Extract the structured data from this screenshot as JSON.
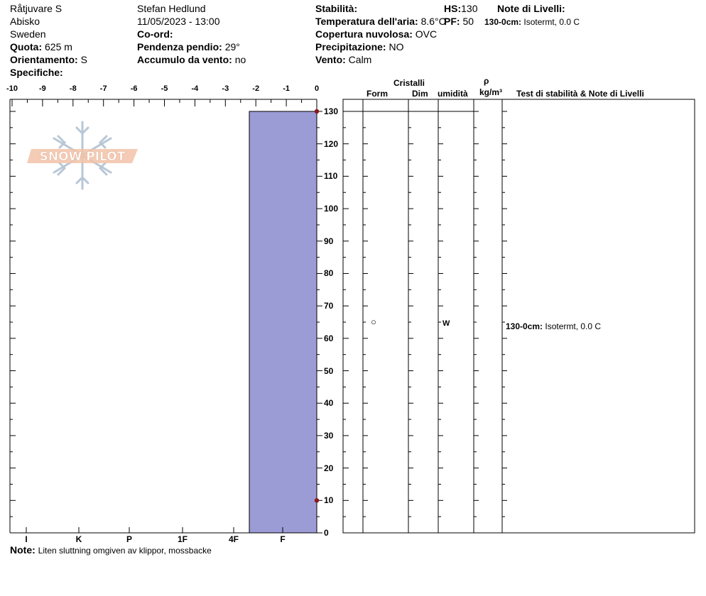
{
  "header": {
    "location": "Råtjuvare S",
    "region": "Abisko",
    "country": "Sweden",
    "elevation_label": "Quota:",
    "elevation": "625 m",
    "aspect_label": "Orientamento:",
    "aspect": "S",
    "specifics_label": "Specifiche:",
    "observer": "Stefan Hedlund",
    "datetime": "11/05/2023 - 13:00",
    "coord_label": "Co-ord:",
    "slope_label": "Pendenza pendio:",
    "slope": "29°",
    "wind_loading_label": "Accumulo da vento:",
    "wind_loading": "no",
    "stability_label": "Stabilità:",
    "air_temp_label": "Temperatura dell'aria:",
    "air_temp": "8.6°C",
    "cloud_label": "Copertura nuvolosa:",
    "cloud": "OVC",
    "precip_label": "Precipitazione:",
    "precip": "NO",
    "wind_label": "Vento:",
    "wind": "Calm",
    "hs_label": "HS:",
    "hs": "130",
    "pf_label": "PF:",
    "pf": "50",
    "layer_notes_label": "Note di Livelli:",
    "layer_note_depth": "130-0cm:",
    "layer_note_text": "Isotermt, 0.0 C"
  },
  "table": {
    "crystals_header": "Cristalli",
    "form_header": "Form",
    "size_header": "Dim",
    "moisture_header": "umidità",
    "rho_header": "ρ",
    "density_unit_header": "kg/m³",
    "notes_header": "Test di stabilità & Note di Livelli",
    "layer_form": "○",
    "layer_moisture": "W",
    "layer_note_depth": "130-0cm:",
    "layer_note_text": "Isotermt, 0.0 C"
  },
  "note": {
    "label": "Note:",
    "text": "Liten sluttning omgiven av klippor, mossbacke"
  },
  "logo": {
    "text": "SNOW PILOT"
  },
  "colors": {
    "hardness_fill": "#9b9bd6",
    "temp_marker": "#8b1a1a",
    "logo_text": "#f2c2a8",
    "logo_flake": "#b8c7d6"
  },
  "chart_data": {
    "type": "area",
    "temperature_axis": {
      "ticks": [
        -10,
        -9,
        -8,
        -7,
        -6,
        -5,
        -4,
        -3,
        -2,
        -1,
        0
      ],
      "range": [
        -10,
        0
      ]
    },
    "height_axis": {
      "ticks": [
        0,
        10,
        20,
        30,
        40,
        50,
        60,
        70,
        80,
        90,
        100,
        110,
        120,
        130
      ],
      "range": [
        0,
        130
      ]
    },
    "hardness_axis": {
      "labels": [
        "I",
        "K",
        "P",
        "1F",
        "4F",
        "F"
      ]
    },
    "layers": [
      {
        "top": 130,
        "bottom": 0,
        "hardness": "F"
      }
    ],
    "temperature_points": [
      {
        "height": 130,
        "temp": 0
      },
      {
        "height": 10,
        "temp": 0
      }
    ]
  }
}
